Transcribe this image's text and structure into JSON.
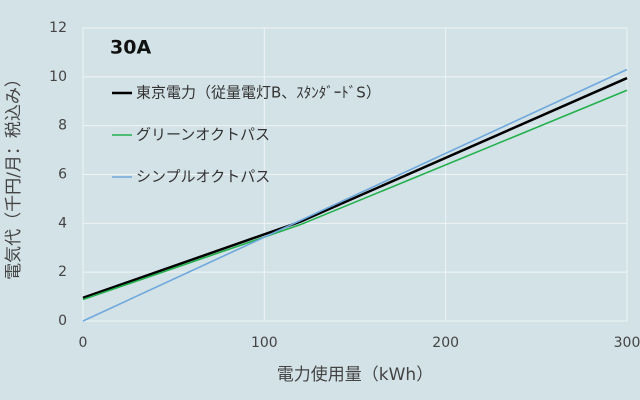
{
  "chart_data": {
    "type": "line",
    "legend_title": "30A",
    "x_label": "電力使用量（kWh）",
    "y_label": "電気代（千円/月：税込み）",
    "x": [
      0,
      120,
      300
    ],
    "series": [
      {
        "name": "東京電力（従量電灯B、ｽﾀﾝﾀﾞｰﾄﾞS）",
        "color": "#000000",
        "values": [
          0.95,
          4.07,
          9.95
        ]
      },
      {
        "name": "グリーンオクトパス",
        "color": "#22b04c",
        "values": [
          0.88,
          3.95,
          9.45
        ]
      },
      {
        "name": "シンプルオクトパス",
        "color": "#6fa8dc",
        "values": [
          0,
          4.12,
          10.3
        ]
      }
    ],
    "xlim": [
      0,
      300
    ],
    "xticks": [
      0,
      100,
      200,
      300
    ],
    "ylim": [
      0,
      12
    ],
    "yticks": [
      0,
      2,
      4,
      6,
      8,
      10,
      12
    ],
    "grid": true,
    "legend": "upper left"
  }
}
